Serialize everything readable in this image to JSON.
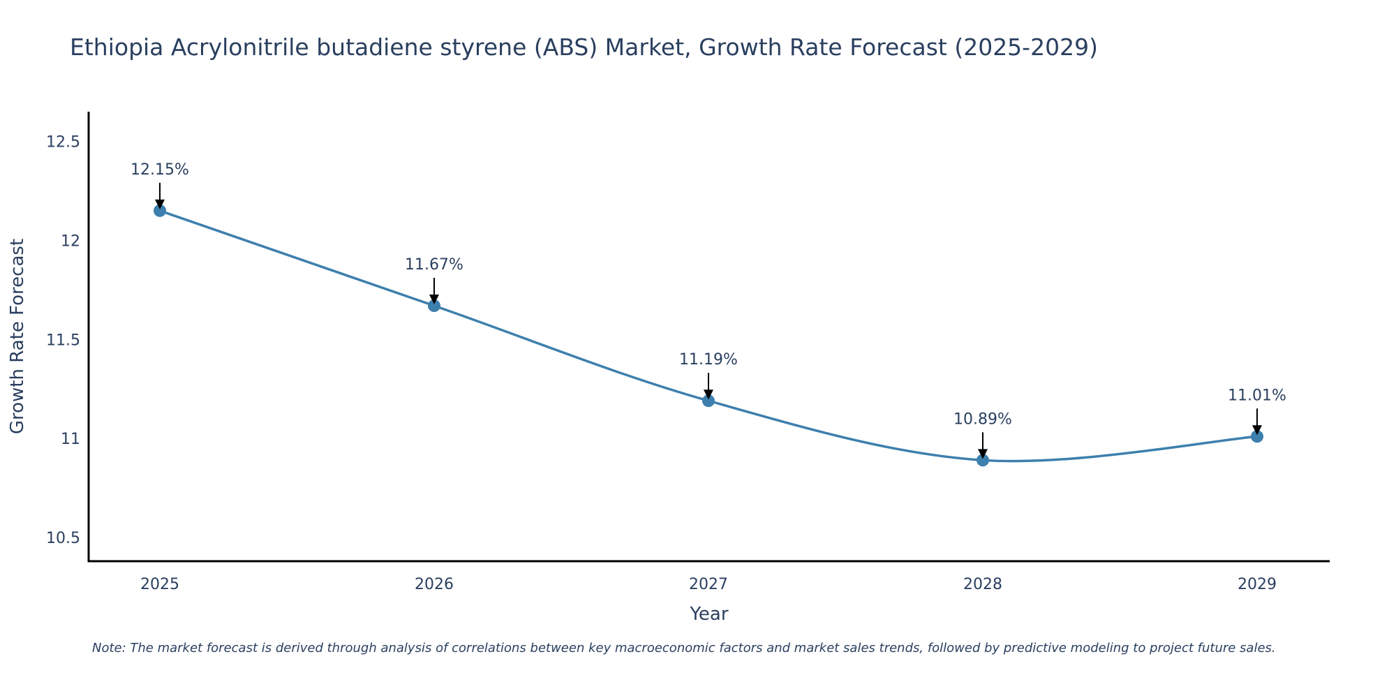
{
  "chart_data": {
    "type": "line",
    "title": "Ethiopia Acrylonitrile butadiene styrene (ABS) Market, Growth Rate Forecast (2025-2029)",
    "xlabel": "Year",
    "ylabel": "Growth Rate Forecast",
    "categories": [
      "2025",
      "2026",
      "2027",
      "2028",
      "2029"
    ],
    "series": [
      {
        "name": "Growth Rate Forecast",
        "values": [
          12.15,
          11.67,
          11.19,
          10.89,
          11.01
        ]
      }
    ],
    "data_labels": [
      "12.15%",
      "11.67%",
      "11.19%",
      "10.89%",
      "11.01%"
    ],
    "ylim": [
      10.38,
      12.65
    ],
    "yticks": [
      10.5,
      11,
      11.5,
      12,
      12.5
    ],
    "ytick_labels": [
      "10.5",
      "11",
      "11.5",
      "12",
      "12.5"
    ],
    "grid": false,
    "line_shape": "spline",
    "color": "#3d7fad",
    "note": "Note: The market forecast is derived through analysis of correlations between key macroeconomic factors and market sales trends, followed by predictive modeling to project future sales."
  }
}
